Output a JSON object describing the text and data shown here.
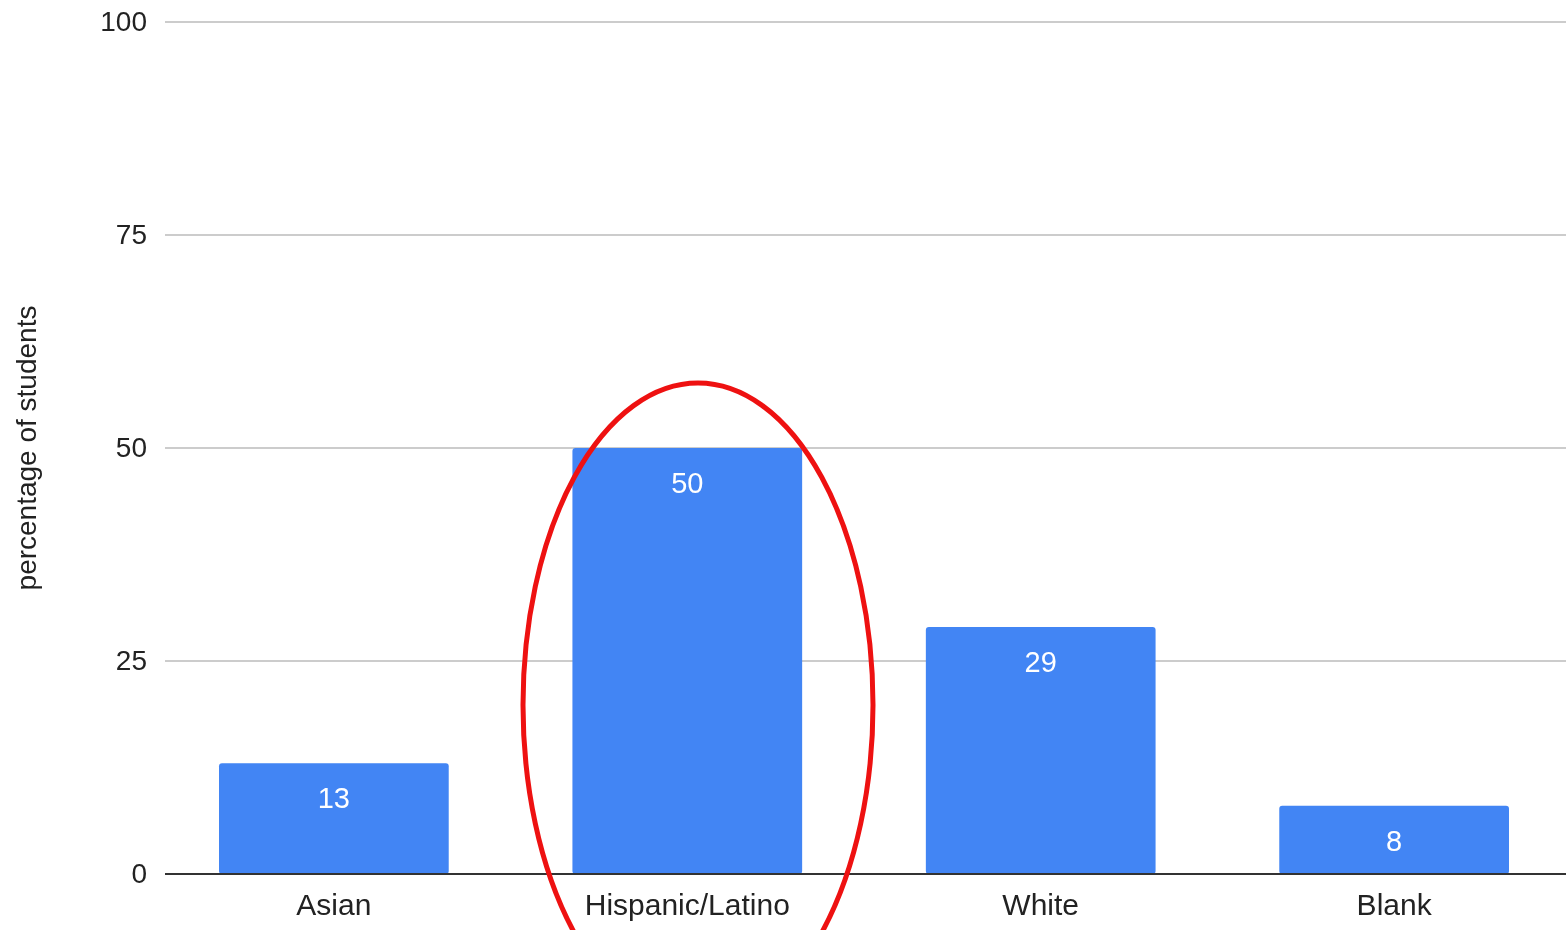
{
  "chart_data": {
    "type": "bar",
    "ylabel": "percentage of students",
    "categories": [
      "Asian",
      "Hispanic/Latino",
      "White",
      "Blank"
    ],
    "values": [
      13,
      50,
      29,
      8
    ],
    "color": "#4285f4",
    "ylim": [
      0,
      100
    ],
    "yticks": [
      0,
      25,
      50,
      75,
      100
    ],
    "grid": "y",
    "data_labels": true
  }
}
